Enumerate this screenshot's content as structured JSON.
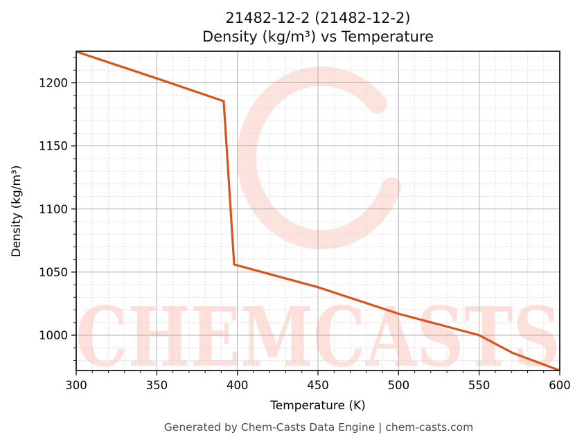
{
  "title": {
    "line1": "21482-12-2 (21482-12-2)",
    "line2": "Density (kg/m³) vs Temperature"
  },
  "footer": "Generated by Chem-Casts Data Engine | chem-casts.com",
  "watermark": {
    "text": "CHEMCASTS",
    "color": "#fde0da"
  },
  "colors": {
    "line": "#d9531e",
    "grid_major": "#b0b0b0",
    "grid_minor": "#d8d8d8",
    "axis": "#1a1a1a"
  },
  "chart_data": {
    "type": "line",
    "title": "21482-12-2 (21482-12-2) Density (kg/m³) vs Temperature",
    "xlabel": "Temperature (K)",
    "ylabel": "Density (kg/m³)",
    "xlim": [
      300,
      600
    ],
    "ylim": [
      972,
      1225
    ],
    "xticks": [
      300,
      350,
      400,
      450,
      500,
      550,
      600
    ],
    "yticks": [
      1000,
      1050,
      1100,
      1150,
      1200
    ],
    "grid": true,
    "minor_grid": true,
    "legend": null,
    "series": [
      {
        "name": "Density",
        "color": "#d9531e",
        "x": [
          300,
          350,
          391.5,
          398,
          450,
          500,
          550,
          570.7,
          600
        ],
        "y": [
          1224.7,
          1203.5,
          1185.5,
          1056,
          1038,
          1017,
          1000,
          986,
          972
        ]
      }
    ]
  }
}
